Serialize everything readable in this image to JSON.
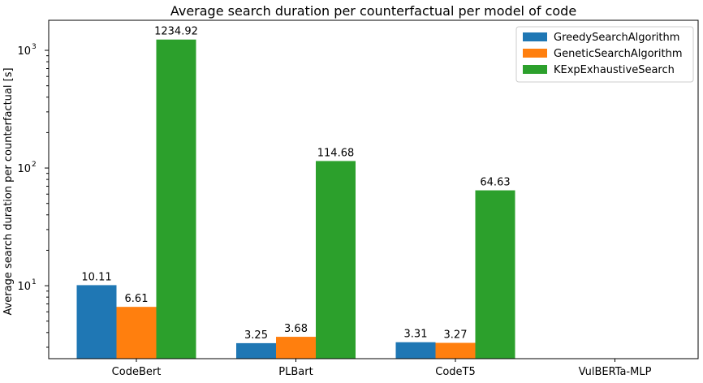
{
  "chart_data": {
    "type": "bar",
    "title": "Average search duration per counterfactual per model of code",
    "xlabel": "",
    "ylabel": "Average search duration per counterfactual [s]",
    "yscale": "log",
    "ylim": [
      2.4,
      1800
    ],
    "categories": [
      "CodeBert",
      "PLBart",
      "CodeT5",
      "VulBERTa-MLP"
    ],
    "series": [
      {
        "name": "GreedySearchAlgorithm",
        "color": "#1f77b4",
        "values": [
          10.11,
          3.25,
          3.31,
          null
        ]
      },
      {
        "name": "GeneticSearchAlgorithm",
        "color": "#ff7f0e",
        "values": [
          6.61,
          3.68,
          3.27,
          null
        ]
      },
      {
        "name": "KExpExhaustiveSearch",
        "color": "#2ca02c",
        "values": [
          1234.92,
          114.68,
          64.63,
          null
        ]
      }
    ],
    "bar_labels": [
      [
        "10.11",
        "3.25",
        "3.31",
        ""
      ],
      [
        "6.61",
        "3.68",
        "3.27",
        ""
      ],
      [
        "1234.92",
        "114.68",
        "64.63",
        ""
      ]
    ],
    "y_ticks": [
      {
        "value": 10,
        "label": "10",
        "exp": "1"
      },
      {
        "value": 100,
        "label": "10",
        "exp": "2"
      },
      {
        "value": 1000,
        "label": "10",
        "exp": "3"
      }
    ],
    "legend_position": "upper-right",
    "grid": false
  }
}
